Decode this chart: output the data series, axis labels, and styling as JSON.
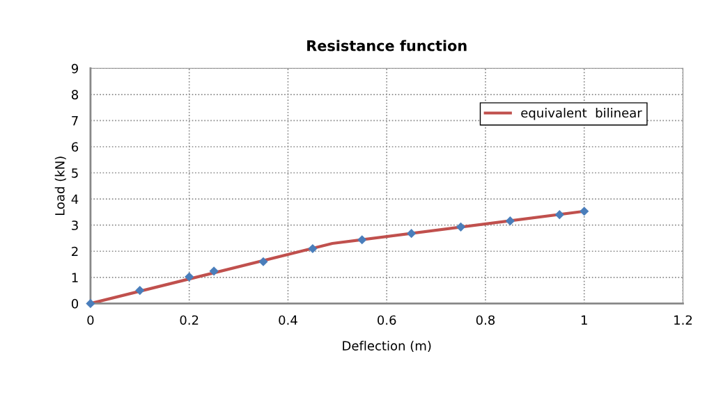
{
  "chart_data": {
    "type": "scatter",
    "title": "Resistance function",
    "xlabel": "Deflection (m)",
    "ylabel": "Load (kN)",
    "series": [
      {
        "color": "#4a7ebb",
        "marker": "diamond",
        "x": [
          0,
          0.1,
          0.2,
          0.25,
          0.35,
          0.45,
          0.55,
          0.65,
          0.75,
          0.85,
          0.95,
          1.0
        ],
        "values": [
          0,
          0.5,
          1.02,
          1.24,
          1.6,
          2.1,
          2.44,
          2.68,
          2.93,
          3.16,
          3.4,
          3.53
        ]
      },
      {
        "type": "line",
        "name": "equivalent  bilinear",
        "color": "#c0504d",
        "marker": "none",
        "x": [
          0,
          0.49,
          1.0
        ],
        "values": [
          0,
          2.3,
          3.53
        ]
      }
    ],
    "xlim": [
      0,
      1.2
    ],
    "xticks": [
      0,
      0.2,
      0.4,
      0.6,
      0.8,
      1,
      1.2
    ],
    "ylim": [
      0,
      9
    ],
    "yticks": [
      0,
      1,
      2,
      3,
      4,
      5,
      6,
      7,
      8,
      9
    ],
    "grid": true,
    "legend": "top right"
  }
}
